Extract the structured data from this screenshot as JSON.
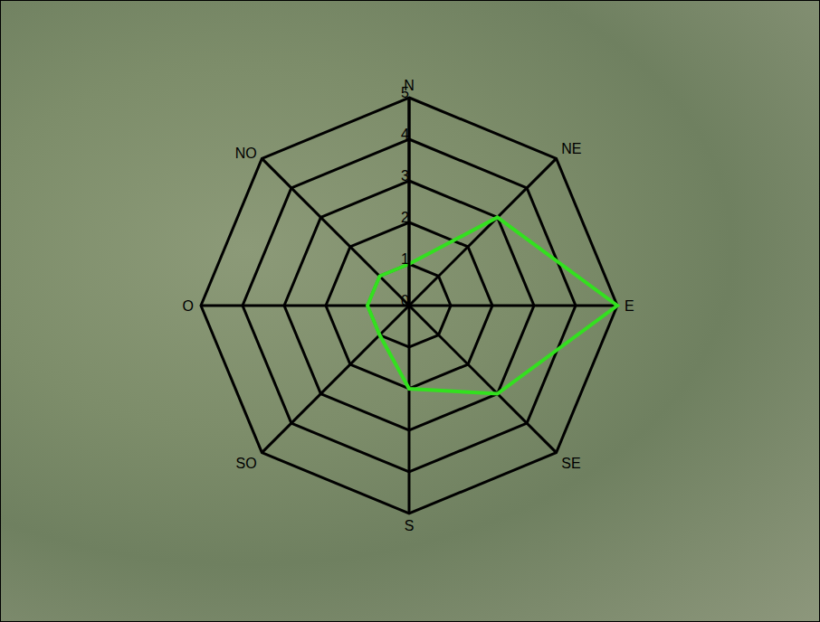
{
  "chart_data": {
    "type": "radar",
    "categories": [
      "N",
      "NE",
      "E",
      "SE",
      "S",
      "SO",
      "O",
      "NO"
    ],
    "values": [
      1,
      3,
      5,
      3,
      2,
      1,
      1,
      1
    ],
    "color": "#33e01f",
    "ylim": [
      0,
      5
    ],
    "yticks": [
      0,
      1,
      2,
      3,
      4,
      5
    ],
    "grid": true
  }
}
